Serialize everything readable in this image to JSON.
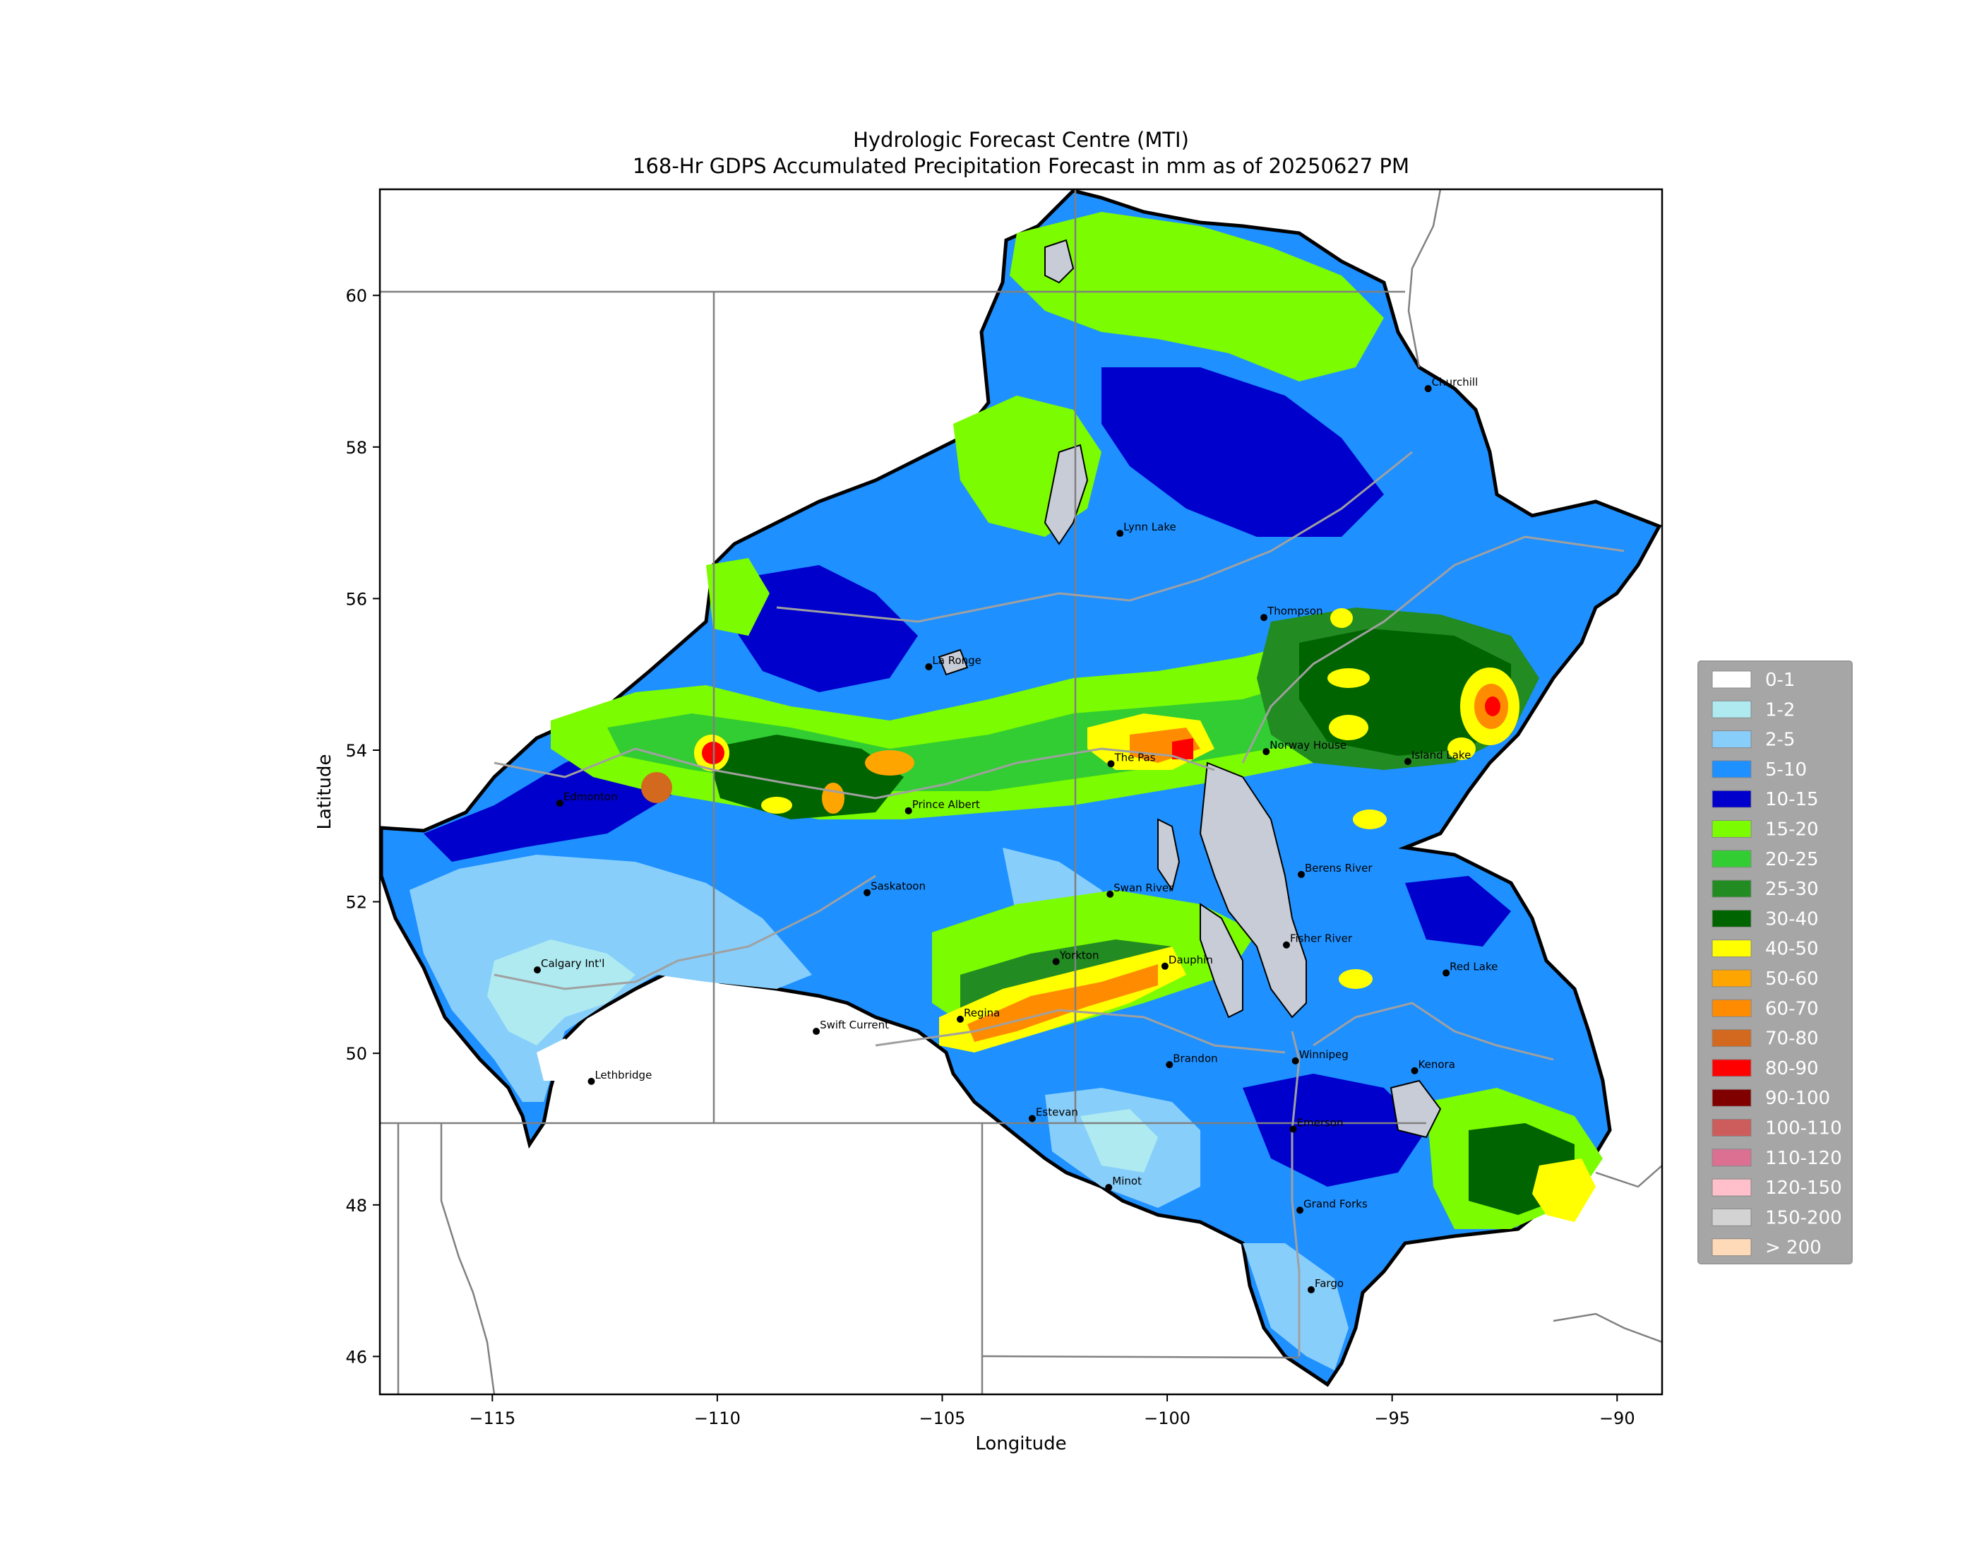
{
  "title_line1": "Hydrologic Forecast Centre (MTI)",
  "title_line2": "168-Hr GDPS Accumulated Precipitation Forecast in mm as of 20250627 PM",
  "xlabel": "Longitude",
  "ylabel": "Latitude",
  "x_ticks": [
    {
      "value": -115,
      "label": "−115"
    },
    {
      "value": -110,
      "label": "−110"
    },
    {
      "value": -105,
      "label": "−105"
    },
    {
      "value": -100,
      "label": "−100"
    },
    {
      "value": -95,
      "label": "−95"
    },
    {
      "value": -90,
      "label": "−90"
    }
  ],
  "y_ticks": [
    {
      "value": 46,
      "label": "46"
    },
    {
      "value": 48,
      "label": "48"
    },
    {
      "value": 50,
      "label": "50"
    },
    {
      "value": 52,
      "label": "52"
    },
    {
      "value": 54,
      "label": "54"
    },
    {
      "value": 56,
      "label": "56"
    },
    {
      "value": 58,
      "label": "58"
    },
    {
      "value": 60,
      "label": "60"
    }
  ],
  "map_extent": {
    "lon": [
      -117.5,
      -89
    ],
    "lat": [
      45.5,
      61.4
    ]
  },
  "legend": [
    {
      "label": "0-1",
      "color": "#ffffff"
    },
    {
      "label": "1-2",
      "color": "#aeeaf0"
    },
    {
      "label": "2-5",
      "color": "#87cefa"
    },
    {
      "label": "5-10",
      "color": "#1e90ff"
    },
    {
      "label": "10-15",
      "color": "#0000cd"
    },
    {
      "label": "15-20",
      "color": "#7cfc00"
    },
    {
      "label": "20-25",
      "color": "#32cd32"
    },
    {
      "label": "25-30",
      "color": "#228b22"
    },
    {
      "label": "30-40",
      "color": "#006400"
    },
    {
      "label": "40-50",
      "color": "#ffff00"
    },
    {
      "label": "50-60",
      "color": "#ffa500"
    },
    {
      "label": "60-70",
      "color": "#ff8c00"
    },
    {
      "label": "70-80",
      "color": "#d2691e"
    },
    {
      "label": "80-90",
      "color": "#ff0000"
    },
    {
      "label": "90-100",
      "color": "#800000"
    },
    {
      "label": "100-110",
      "color": "#cd5c5c"
    },
    {
      "label": "110-120",
      "color": "#db7093"
    },
    {
      "label": "120-150",
      "color": "#ffc0cb"
    },
    {
      "label": "150-200",
      "color": "#d3d3d3"
    },
    {
      "label": "> 200",
      "color": "#ffdab9"
    }
  ],
  "cities": [
    {
      "name": "Churchill",
      "lon": -94.2,
      "lat": 58.77
    },
    {
      "name": "Lynn Lake",
      "lon": -101.05,
      "lat": 56.86
    },
    {
      "name": "Thompson",
      "lon": -97.85,
      "lat": 55.75
    },
    {
      "name": "La Ronge",
      "lon": -105.3,
      "lat": 55.1
    },
    {
      "name": "Norway House",
      "lon": -97.8,
      "lat": 53.98
    },
    {
      "name": "Island Lake",
      "lon": -94.65,
      "lat": 53.85
    },
    {
      "name": "The Pas",
      "lon": -101.25,
      "lat": 53.82
    },
    {
      "name": "Edmonton",
      "lon": -113.5,
      "lat": 53.3
    },
    {
      "name": "Prince Albert",
      "lon": -105.75,
      "lat": 53.2
    },
    {
      "name": "Saskatoon",
      "lon": -106.67,
      "lat": 52.12
    },
    {
      "name": "Swan River",
      "lon": -101.27,
      "lat": 52.1
    },
    {
      "name": "Berens River",
      "lon": -97.02,
      "lat": 52.36
    },
    {
      "name": "Fisher River",
      "lon": -97.35,
      "lat": 51.43
    },
    {
      "name": "Yorkton",
      "lon": -102.47,
      "lat": 51.21
    },
    {
      "name": "Dauphin",
      "lon": -100.05,
      "lat": 51.15
    },
    {
      "name": "Red Lake",
      "lon": -93.8,
      "lat": 51.06
    },
    {
      "name": "Calgary Int'l",
      "lon": -114.0,
      "lat": 51.1
    },
    {
      "name": "Regina",
      "lon": -104.6,
      "lat": 50.45
    },
    {
      "name": "Swift Current",
      "lon": -107.8,
      "lat": 50.29
    },
    {
      "name": "Brandon",
      "lon": -99.95,
      "lat": 49.85
    },
    {
      "name": "Winnipeg",
      "lon": -97.15,
      "lat": 49.9
    },
    {
      "name": "Kenora",
      "lon": -94.5,
      "lat": 49.77
    },
    {
      "name": "Lethbridge",
      "lon": -112.8,
      "lat": 49.63
    },
    {
      "name": "Estevan",
      "lon": -103.0,
      "lat": 49.14
    },
    {
      "name": "Emerson",
      "lon": -97.2,
      "lat": 49.0
    },
    {
      "name": "Minot",
      "lon": -101.3,
      "lat": 48.23
    },
    {
      "name": "Grand Forks",
      "lon": -97.05,
      "lat": 47.93
    },
    {
      "name": "Fargo",
      "lon": -96.8,
      "lat": 46.88
    }
  ]
}
